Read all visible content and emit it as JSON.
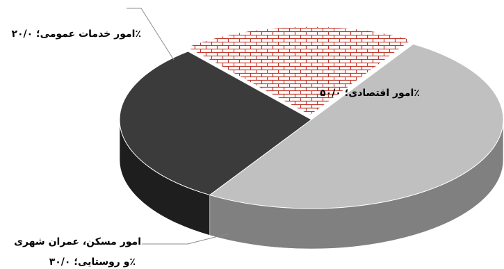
{
  "chart_data": {
    "type": "pie",
    "style": "3d-exploded",
    "slices": [
      {
        "label": "امور اقتصادی",
        "value": 50.0,
        "value_text": "۵۰/۰٪",
        "color": "#c0c0c0",
        "fill": "solid-light-gray"
      },
      {
        "label": "امور مسکن، عمران شهری و روستایی",
        "value": 30.0,
        "value_text": "۳۰/۰٪",
        "color": "#3b3b3b",
        "fill": "solid-dark-gray"
      },
      {
        "label": "امور خدمات عمومی",
        "value": 20.0,
        "value_text": "۲۰/۰٪",
        "color": "#c0392b",
        "fill": "brick-pattern"
      }
    ],
    "data_labels": [
      {
        "text": "امور اقتصادی؛ ۵۰/۰٪"
      },
      {
        "text": "امور مسکن، عمران شهری",
        "text2": "و روستایی؛ ۳۰/۰٪"
      },
      {
        "text": "امور خدمات عمومی؛ ۲۰/۰٪"
      }
    ]
  }
}
